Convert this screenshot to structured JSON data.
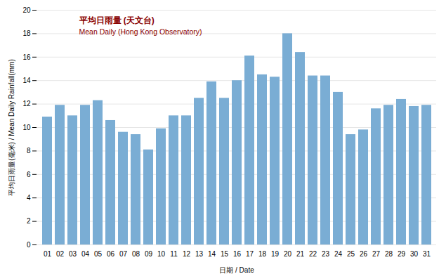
{
  "chart_data": {
    "type": "bar",
    "categories": [
      "01",
      "02",
      "03",
      "04",
      "05",
      "06",
      "07",
      "08",
      "09",
      "10",
      "11",
      "12",
      "13",
      "14",
      "15",
      "16",
      "17",
      "18",
      "19",
      "20",
      "21",
      "22",
      "23",
      "24",
      "25",
      "26",
      "27",
      "28",
      "29",
      "30",
      "31"
    ],
    "values": [
      10.9,
      11.9,
      11.0,
      11.9,
      12.3,
      10.6,
      9.6,
      9.4,
      8.1,
      9.9,
      11.0,
      11.0,
      12.5,
      13.9,
      12.5,
      14.0,
      16.1,
      14.5,
      14.3,
      18.0,
      16.4,
      14.4,
      14.4,
      13.0,
      9.4,
      9.8,
      11.6,
      11.9,
      12.4,
      11.8,
      11.9
    ],
    "color": "#7aadd4",
    "xlabel": "日期 / Date",
    "ylabel": "平均日雨量(毫米) / Mean Daily Rainfall(mm)",
    "annotations": [
      "平均日雨量 (天文台)",
      "Mean Daily (Hong Kong Observatory)"
    ],
    "ylim": [
      0,
      20
    ],
    "yticks": [
      0,
      2,
      4,
      6,
      8,
      10,
      12,
      14,
      16,
      18,
      20
    ],
    "grid": true
  }
}
